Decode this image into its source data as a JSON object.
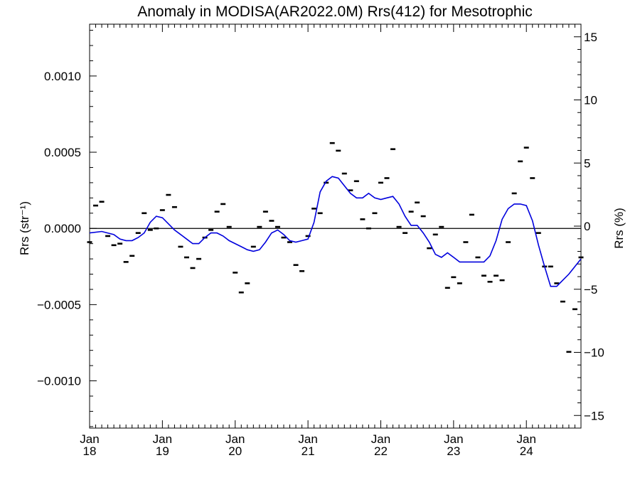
{
  "chart_data": {
    "type": "scatter",
    "title": "Anomaly in MODISA(AR2022.0M) Rrs(412) for Mesotrophic",
    "ylabel_left": "Rrs (str⁻¹)",
    "ylabel_right": "Rrs (%)",
    "xlim": [
      "2018-01",
      "2024-10"
    ],
    "ylim_left": [
      -0.00131,
      0.00134
    ],
    "ylim_right": [
      -16,
      16
    ],
    "grid": false,
    "x_ticks": [
      {
        "month": "Jan",
        "year": "18",
        "x": "2018-01"
      },
      {
        "month": "Jan",
        "year": "19",
        "x": "2019-01"
      },
      {
        "month": "Jan",
        "year": "20",
        "x": "2020-01"
      },
      {
        "month": "Jan",
        "year": "21",
        "x": "2021-01"
      },
      {
        "month": "Jan",
        "year": "22",
        "x": "2022-01"
      },
      {
        "month": "Jan",
        "year": "23",
        "x": "2023-01"
      },
      {
        "month": "Jan",
        "year": "24",
        "x": "2024-01"
      }
    ],
    "y_ticks_left": [
      {
        "value": 0.001,
        "label": "0.0010"
      },
      {
        "value": 0.0005,
        "label": "0.0005"
      },
      {
        "value": 0.0,
        "label": "0.0000"
      },
      {
        "value": -0.0005,
        "label": "−0.0005"
      },
      {
        "value": -0.001,
        "label": "−0.0010"
      }
    ],
    "y_ticks_right": [
      {
        "value": 15,
        "label": "15"
      },
      {
        "value": 10,
        "label": "10"
      },
      {
        "value": 5,
        "label": "5"
      },
      {
        "value": 0,
        "label": "0"
      },
      {
        "value": -5,
        "label": "−5"
      },
      {
        "value": -10,
        "label": "−10"
      },
      {
        "value": -15,
        "label": "−15"
      }
    ],
    "colors": {
      "points": "#000000",
      "line": "#0000dd",
      "zero_line": "#000000"
    },
    "monthly_anomaly": {
      "x": [
        "2018-01",
        "2018-02",
        "2018-03",
        "2018-04",
        "2018-05",
        "2018-06",
        "2018-07",
        "2018-08",
        "2018-09",
        "2018-10",
        "2018-11",
        "2018-12",
        "2019-01",
        "2019-02",
        "2019-03",
        "2019-04",
        "2019-05",
        "2019-06",
        "2019-07",
        "2019-08",
        "2019-09",
        "2019-10",
        "2019-11",
        "2019-12",
        "2020-01",
        "2020-02",
        "2020-03",
        "2020-04",
        "2020-05",
        "2020-06",
        "2020-07",
        "2020-08",
        "2020-09",
        "2020-10",
        "2020-11",
        "2020-12",
        "2021-01",
        "2021-02",
        "2021-03",
        "2021-04",
        "2021-05",
        "2021-06",
        "2021-07",
        "2021-08",
        "2021-09",
        "2021-10",
        "2021-11",
        "2021-12",
        "2022-01",
        "2022-02",
        "2022-03",
        "2022-04",
        "2022-05",
        "2022-06",
        "2022-07",
        "2022-08",
        "2022-09",
        "2022-10",
        "2022-11",
        "2022-12",
        "2023-01",
        "2023-02",
        "2023-03",
        "2023-04",
        "2023-05",
        "2023-06",
        "2023-07",
        "2023-08",
        "2023-09",
        "2023-10",
        "2023-11",
        "2023-12",
        "2024-01",
        "2024-02",
        "2024-03",
        "2024-04",
        "2024-05",
        "2024-06",
        "2024-07",
        "2024-08",
        "2024-09",
        "2024-10"
      ],
      "y": [
        -9e-05,
        0.00015,
        0.000175,
        -5e-05,
        -0.00011,
        -0.0001,
        -0.00022,
        -0.00018,
        -3e-05,
        0.0001,
        -1e-05,
        0.0,
        0.00012,
        0.00022,
        0.00014,
        -0.00012,
        -0.00019,
        -0.00026,
        -0.0002,
        -6e-05,
        -1e-05,
        0.00011,
        0.00016,
        1e-05,
        -0.00029,
        -0.00042,
        -0.00036,
        -0.00012,
        1e-05,
        0.00011,
        5e-05,
        1e-05,
        -6e-05,
        -9e-05,
        -0.00024,
        -0.00028,
        -5e-05,
        0.00013,
        0.0001,
        0.0003,
        0.00056,
        0.00051,
        0.00036,
        0.00025,
        0.00031,
        6e-05,
        0.0,
        0.0001,
        0.0003,
        0.00033,
        0.00052,
        1e-05,
        -3e-05,
        0.00011,
        0.00017,
        8e-05,
        -0.00013,
        -4e-05,
        1e-05,
        -0.00039,
        -0.00032,
        -0.00036,
        -9e-05,
        9e-05,
        -0.00019,
        -0.00031,
        -0.00035,
        -0.00031,
        -0.00034,
        -9e-05,
        0.00023,
        0.00044,
        0.00053,
        0.00033,
        -3e-05,
        -0.00025,
        -0.00025,
        -0.00036,
        -0.00048,
        -0.00081,
        -0.00053,
        -0.00019
      ]
    },
    "running_mean": {
      "x": [
        "2018-01",
        "2018-03",
        "2018-05",
        "2018-06",
        "2018-07",
        "2018-08",
        "2018-09",
        "2018-10",
        "2018-11",
        "2018-12",
        "2019-01",
        "2019-02",
        "2019-03",
        "2019-04",
        "2019-05",
        "2019-06",
        "2019-07",
        "2019-08",
        "2019-09",
        "2019-10",
        "2019-11",
        "2019-12",
        "2020-01",
        "2020-02",
        "2020-03",
        "2020-04",
        "2020-05",
        "2020-06",
        "2020-07",
        "2020-08",
        "2020-09",
        "2020-10",
        "2020-11",
        "2020-12",
        "2021-01",
        "2021-02",
        "2021-03",
        "2021-04",
        "2021-05",
        "2021-06",
        "2021-07",
        "2021-08",
        "2021-09",
        "2021-10",
        "2021-11",
        "2021-12",
        "2022-01",
        "2022-02",
        "2022-03",
        "2022-04",
        "2022-05",
        "2022-06",
        "2022-07",
        "2022-08",
        "2022-09",
        "2022-10",
        "2022-11",
        "2022-12",
        "2023-01",
        "2023-02",
        "2023-03",
        "2023-04",
        "2023-05",
        "2023-06",
        "2023-07",
        "2023-08",
        "2023-09",
        "2023-10",
        "2023-11",
        "2023-12",
        "2024-01",
        "2024-02",
        "2024-03",
        "2024-04",
        "2024-05",
        "2024-06",
        "2024-07",
        "2024-08",
        "2024-09",
        "2024-10"
      ],
      "y": [
        -3e-05,
        -2e-05,
        -4e-05,
        -7e-05,
        -8e-05,
        -8e-05,
        -6e-05,
        -3e-05,
        4e-05,
        8e-05,
        7e-05,
        3e-05,
        -1e-05,
        -4e-05,
        -7e-05,
        -0.0001,
        -0.0001,
        -6e-05,
        -3e-05,
        -3e-05,
        -5e-05,
        -8e-05,
        -0.0001,
        -0.00012,
        -0.00014,
        -0.00015,
        -0.00014,
        -9e-05,
        -3e-05,
        -1e-05,
        -4e-05,
        -8e-05,
        -9e-05,
        -8e-05,
        -7e-05,
        4e-05,
        0.00024,
        0.00031,
        0.00034,
        0.00033,
        0.00028,
        0.00023,
        0.0002,
        0.0002,
        0.00023,
        0.0002,
        0.00019,
        0.0002,
        0.00021,
        0.00016,
        8e-05,
        2e-05,
        2e-05,
        -3e-05,
        -9e-05,
        -0.00017,
        -0.00019,
        -0.00016,
        -0.00019,
        -0.00022,
        -0.00022,
        -0.00022,
        -0.00022,
        -0.00022,
        -0.00018,
        -8e-05,
        6e-05,
        0.00013,
        0.00016,
        0.00016,
        0.00015,
        5e-05,
        -0.00011,
        -0.00025,
        -0.00038,
        -0.00038,
        -0.00034,
        -0.0003,
        -0.00025,
        -0.0002
      ]
    }
  }
}
